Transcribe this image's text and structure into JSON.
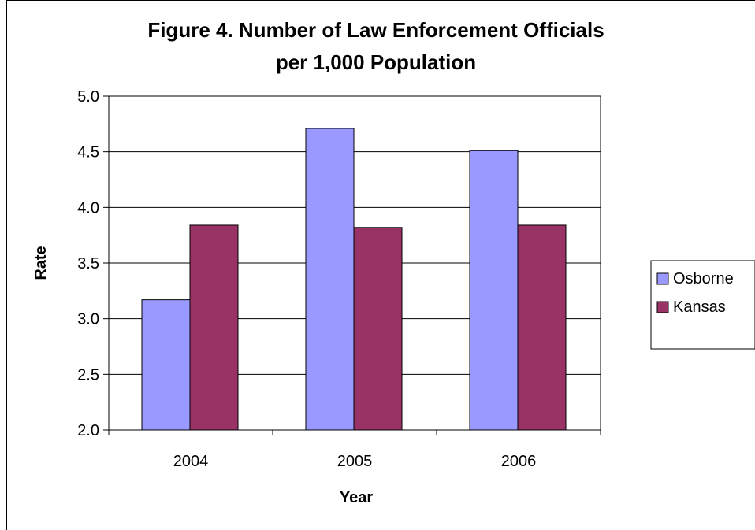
{
  "chart_data": {
    "type": "bar",
    "title": "Figure 4. Number of Law Enforcement Officials",
    "subtitle": "per 1,000 Population",
    "xlabel": "Year",
    "ylabel": "Rate",
    "categories": [
      "2004",
      "2005",
      "2006"
    ],
    "series": [
      {
        "name": "Osborne",
        "color": "#9999ff",
        "values": [
          3.17,
          4.71,
          4.51
        ]
      },
      {
        "name": "Kansas",
        "color": "#993366",
        "values": [
          3.84,
          3.82,
          3.84
        ]
      }
    ],
    "ylim": [
      2.0,
      5.0
    ],
    "yticks": [
      "2.0",
      "2.5",
      "3.0",
      "3.5",
      "4.0",
      "4.5",
      "5.0"
    ],
    "grid": true,
    "legend_position": "right"
  }
}
